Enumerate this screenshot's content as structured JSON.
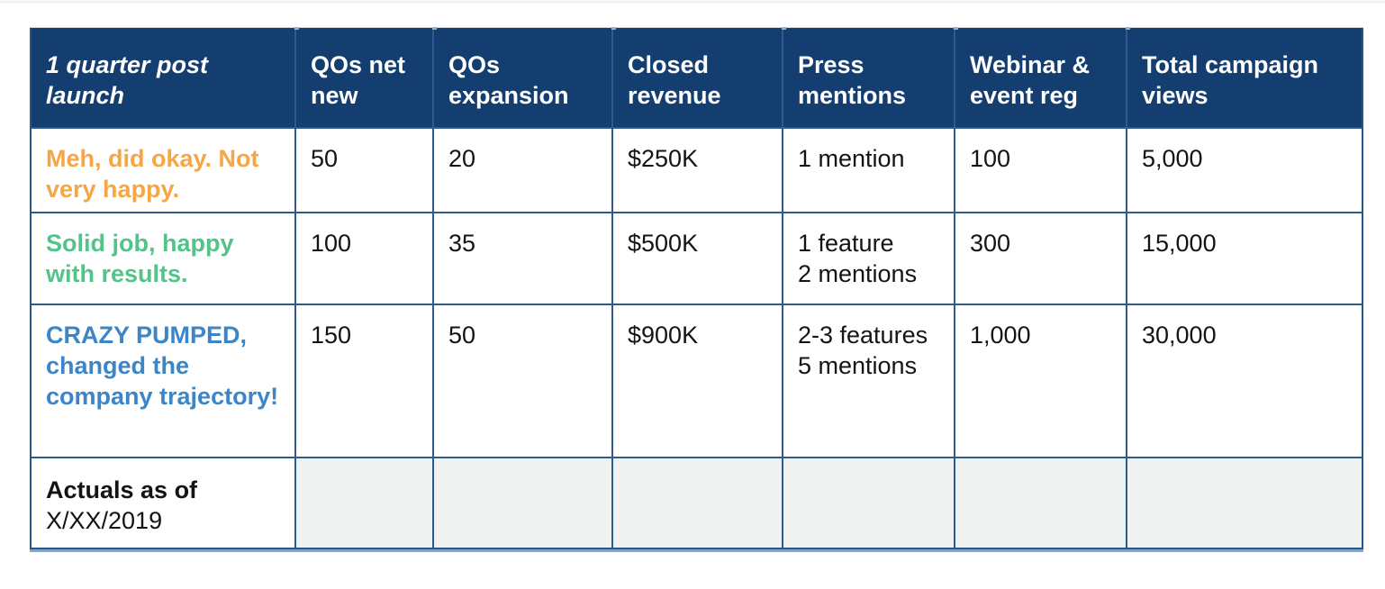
{
  "colors": {
    "header_bg": "#133e6f",
    "grid_line": "#2a5c8e",
    "outer_border": "#24578a",
    "bottom_edge_line": "#8aa5c4",
    "tick_mark": "#9db0c8",
    "accent_orange": "#f6a644",
    "accent_green": "#53c389",
    "accent_blue": "#3c85c6",
    "gray_cell_bg": "#f0f1f1",
    "body_text": "#141414",
    "header_text": "#ffffff"
  },
  "table": {
    "header": [
      {
        "label": "1 quarter post launch"
      },
      {
        "label": "QOs net new"
      },
      {
        "label": "QOs expansion"
      },
      {
        "label": "Closed revenue"
      },
      {
        "label": "Press mentions"
      },
      {
        "label": "Webinar & event reg"
      },
      {
        "label": "Total campaign views"
      }
    ],
    "rows": [
      {
        "label": "Meh, did okay. Not very happy.",
        "label_class": "accent-orange",
        "cells": [
          "50",
          "20",
          "$250K",
          "1 mention",
          "100",
          "5,000"
        ]
      },
      {
        "label": "Solid job, happy with results.",
        "label_class": "accent-green",
        "cells": [
          "100",
          "35",
          "$500K",
          "1 feature\n2 mentions",
          "300",
          "15,000"
        ]
      },
      {
        "label": "CRAZY PUMPED, changed the company trajectory!",
        "label_class": "accent-blue",
        "cells": [
          "150",
          "50",
          "$900K",
          "2-3 features\n5 mentions",
          "1,000",
          "30,000"
        ]
      }
    ],
    "actuals": {
      "label_line1": "Actuals as of",
      "label_line2": "X/XX/2019",
      "cells": [
        "",
        "",
        "",
        "",
        "",
        ""
      ]
    }
  }
}
